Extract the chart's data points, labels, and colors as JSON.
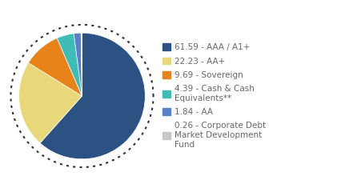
{
  "slices": [
    61.59,
    22.23,
    9.69,
    4.39,
    1.84,
    0.26
  ],
  "colors": [
    "#2b5282",
    "#e8d87a",
    "#e8831a",
    "#3dbdb5",
    "#5b7fcc",
    "#c8c8c8"
  ],
  "labels": [
    "61.59 - AAA / A1+",
    "22.23 - AA+",
    "9.69 - Sovereign",
    "4.39 - Cash & Cash\nEquivalents**",
    "1.84 - AA",
    "0.26 - Corporate Debt\nMarket Development\nFund"
  ],
  "background_color": "#ffffff",
  "legend_fontsize": 7.5,
  "startangle": 90,
  "dash_color": "#333333"
}
